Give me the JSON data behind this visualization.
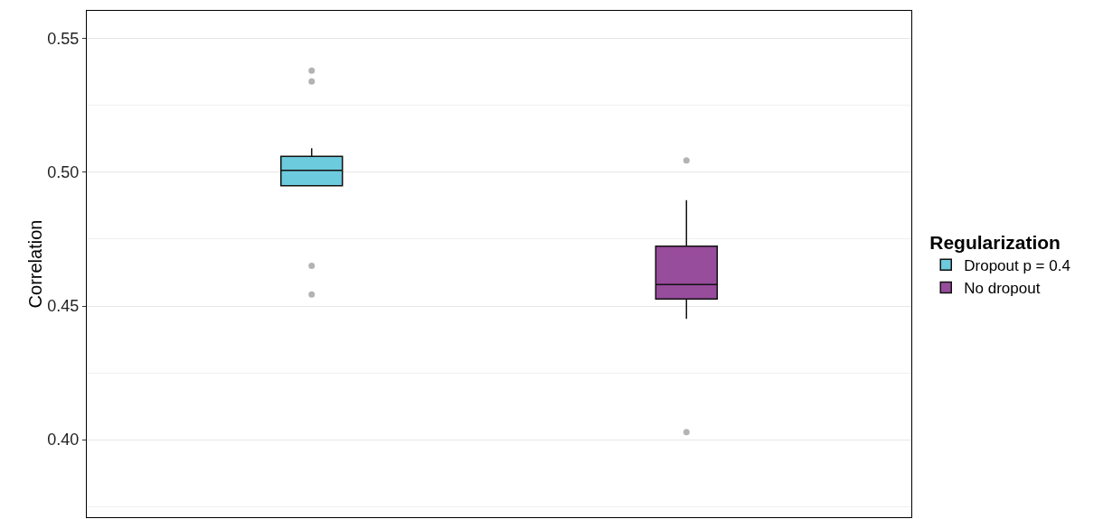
{
  "chart_data": {
    "type": "box",
    "ylabel": "Correlation",
    "legend_title": "Regularization",
    "categories": [
      null,
      null
    ],
    "ylim": [
      0.371,
      0.5604
    ],
    "yticks": [
      {
        "value": 0.4,
        "label": "0.40"
      },
      {
        "value": 0.45,
        "label": "0.45"
      },
      {
        "value": 0.5,
        "label": "0.50"
      },
      {
        "value": 0.55,
        "label": "0.55"
      }
    ],
    "grid": "y",
    "legend": "right",
    "series": [
      {
        "name": "Dropout p = 0.4",
        "color": "#6ccbdc",
        "boxes": [
          {
            "low": 0.495,
            "q1": 0.495,
            "median": 0.5007,
            "q3": 0.506,
            "high": 0.509,
            "outliers": [
              0.538,
              0.534,
              0.465,
              0.4543
            ]
          },
          null
        ]
      },
      {
        "name": "No dropout",
        "color": "#974c9c",
        "boxes": [
          null,
          {
            "low": 0.4452,
            "q1": 0.4526,
            "median": 0.458,
            "q3": 0.4724,
            "high": 0.4896,
            "outliers": [
              0.5044,
              0.4028
            ]
          }
        ]
      }
    ]
  }
}
